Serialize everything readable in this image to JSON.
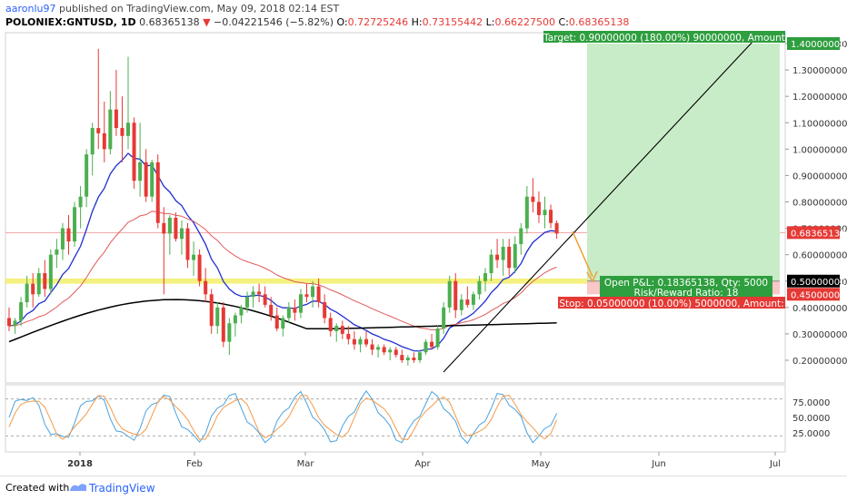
{
  "header": {
    "author": "aaronlu97",
    "published_text": "published on TradingView.com, May 09, 2018 02:14 EST",
    "symbol": "POLONIEX:GNTUSD, 1D",
    "last": "0.68365138",
    "change": "−0.04221546 (−5.82%)",
    "o_label": "O:",
    "o": "0.72725246",
    "h_label": "H:",
    "h": "0.73155442",
    "l_label": "L:",
    "l": "0.66227500",
    "c_label": "C:",
    "c": "0.68365138"
  },
  "footer": {
    "created_with": "Created with",
    "brand": "TradingView"
  },
  "colors": {
    "up": "#4caf50",
    "down": "#e53935",
    "ema_fast": "#1f2fcf",
    "ema_mid": "#e05a5a",
    "ma_long": "#000000",
    "support": "#f2ef6a",
    "target_zone": "#c8ecc8",
    "stop_zone": "#f8c7c7",
    "stoch_k": "#4aa3df",
    "stoch_d": "#f29b4b"
  },
  "chart_data": {
    "type": "candlestick",
    "y_ticks": [
      "1.40000000",
      "1.30000000",
      "1.20000000",
      "1.10000000",
      "1.00000000",
      "0.90000000",
      "0.80000000",
      "0.70000000",
      "0.60000000",
      "0.50000000",
      "0.40000000",
      "0.30000000",
      "0.20000000"
    ],
    "ylim": [
      0.11,
      1.45
    ],
    "x_ticks": [
      "2018",
      "Feb",
      "Mar",
      "Apr",
      "May",
      "Jun",
      "Jul"
    ],
    "price_labels": {
      "last": "0.68365138",
      "level_050": "0.50000000",
      "level_045": "0.45000000",
      "level_140": "1.40000000"
    },
    "support_zone": [
      0.49,
      0.51
    ],
    "horizontal_line": 0.6837,
    "trade": {
      "target_text": "Target: 0.90000000 (180.00%) 90000000, Amount",
      "stop_text": "Stop: 0.05000000 (10.00%) 5000000, Amount:",
      "open_pnl": "Open P&L: 0.18365138, Qty: 5000",
      "risk_reward": "Risk/Reward Ratio: 18",
      "entry": 0.5,
      "stop": 0.45,
      "target": 1.4
    },
    "stochastic": {
      "y_ticks": [
        "75.0000",
        "50.0000",
        "25.0000"
      ],
      "upper": 80,
      "lower": 20
    },
    "candles": [
      [
        0.36,
        0.4,
        0.31,
        0.33
      ],
      [
        0.33,
        0.36,
        0.3,
        0.35
      ],
      [
        0.35,
        0.44,
        0.33,
        0.42
      ],
      [
        0.42,
        0.52,
        0.4,
        0.49
      ],
      [
        0.49,
        0.53,
        0.4,
        0.45
      ],
      [
        0.45,
        0.55,
        0.44,
        0.53
      ],
      [
        0.53,
        0.58,
        0.44,
        0.47
      ],
      [
        0.47,
        0.62,
        0.45,
        0.6
      ],
      [
        0.6,
        0.66,
        0.55,
        0.62
      ],
      [
        0.62,
        0.72,
        0.58,
        0.7
      ],
      [
        0.7,
        0.75,
        0.6,
        0.65
      ],
      [
        0.65,
        0.8,
        0.63,
        0.78
      ],
      [
        0.78,
        0.86,
        0.7,
        0.82
      ],
      [
        0.82,
        1.0,
        0.78,
        0.98
      ],
      [
        0.98,
        1.1,
        0.9,
        1.08
      ],
      [
        1.08,
        1.38,
        1.0,
        1.06
      ],
      [
        1.06,
        1.18,
        0.95,
        1.0
      ],
      [
        1.0,
        1.22,
        0.98,
        1.15
      ],
      [
        1.15,
        1.3,
        1.05,
        1.08
      ],
      [
        1.08,
        1.2,
        0.95,
        1.05
      ],
      [
        1.05,
        1.35,
        1.0,
        1.1
      ],
      [
        1.1,
        1.12,
        0.85,
        0.88
      ],
      [
        0.88,
        1.1,
        0.82,
        0.95
      ],
      [
        0.95,
        1.0,
        0.8,
        0.82
      ],
      [
        0.82,
        0.96,
        0.8,
        0.95
      ],
      [
        0.95,
        0.98,
        0.7,
        0.72
      ],
      [
        0.72,
        0.78,
        0.45,
        0.68
      ],
      [
        0.68,
        0.75,
        0.6,
        0.74
      ],
      [
        0.74,
        0.76,
        0.65,
        0.66
      ],
      [
        0.66,
        0.73,
        0.6,
        0.7
      ],
      [
        0.7,
        0.72,
        0.55,
        0.58
      ],
      [
        0.58,
        0.65,
        0.52,
        0.6
      ],
      [
        0.6,
        0.62,
        0.48,
        0.5
      ],
      [
        0.5,
        0.55,
        0.42,
        0.45
      ],
      [
        0.45,
        0.47,
        0.3,
        0.33
      ],
      [
        0.33,
        0.42,
        0.3,
        0.4
      ],
      [
        0.4,
        0.42,
        0.25,
        0.27
      ],
      [
        0.27,
        0.36,
        0.22,
        0.34
      ],
      [
        0.34,
        0.38,
        0.29,
        0.37
      ],
      [
        0.37,
        0.41,
        0.34,
        0.4
      ],
      [
        0.4,
        0.46,
        0.38,
        0.44
      ],
      [
        0.44,
        0.48,
        0.4,
        0.46
      ],
      [
        0.46,
        0.49,
        0.42,
        0.45
      ],
      [
        0.45,
        0.48,
        0.4,
        0.41
      ],
      [
        0.41,
        0.44,
        0.35,
        0.37
      ],
      [
        0.37,
        0.4,
        0.31,
        0.32
      ],
      [
        0.32,
        0.37,
        0.29,
        0.36
      ],
      [
        0.36,
        0.42,
        0.34,
        0.4
      ],
      [
        0.4,
        0.43,
        0.35,
        0.38
      ],
      [
        0.38,
        0.47,
        0.36,
        0.45
      ],
      [
        0.45,
        0.49,
        0.42,
        0.44
      ],
      [
        0.44,
        0.5,
        0.4,
        0.48
      ],
      [
        0.48,
        0.51,
        0.4,
        0.42
      ],
      [
        0.42,
        0.45,
        0.34,
        0.36
      ],
      [
        0.36,
        0.38,
        0.29,
        0.31
      ],
      [
        0.31,
        0.34,
        0.27,
        0.33
      ],
      [
        0.33,
        0.35,
        0.28,
        0.3
      ],
      [
        0.3,
        0.33,
        0.26,
        0.28
      ],
      [
        0.28,
        0.31,
        0.24,
        0.26
      ],
      [
        0.26,
        0.29,
        0.23,
        0.28
      ],
      [
        0.28,
        0.31,
        0.25,
        0.26
      ],
      [
        0.26,
        0.28,
        0.22,
        0.24
      ],
      [
        0.24,
        0.26,
        0.21,
        0.25
      ],
      [
        0.25,
        0.26,
        0.22,
        0.23
      ],
      [
        0.23,
        0.25,
        0.2,
        0.24
      ],
      [
        0.24,
        0.25,
        0.21,
        0.22
      ],
      [
        0.22,
        0.24,
        0.19,
        0.2
      ],
      [
        0.2,
        0.22,
        0.18,
        0.21
      ],
      [
        0.21,
        0.23,
        0.19,
        0.2
      ],
      [
        0.2,
        0.24,
        0.19,
        0.23
      ],
      [
        0.23,
        0.28,
        0.22,
        0.27
      ],
      [
        0.27,
        0.3,
        0.24,
        0.25
      ],
      [
        0.25,
        0.33,
        0.24,
        0.32
      ],
      [
        0.32,
        0.42,
        0.3,
        0.4
      ],
      [
        0.4,
        0.52,
        0.38,
        0.5
      ],
      [
        0.5,
        0.53,
        0.36,
        0.39
      ],
      [
        0.39,
        0.45,
        0.37,
        0.43
      ],
      [
        0.43,
        0.48,
        0.4,
        0.41
      ],
      [
        0.41,
        0.46,
        0.39,
        0.45
      ],
      [
        0.45,
        0.52,
        0.43,
        0.5
      ],
      [
        0.5,
        0.55,
        0.46,
        0.53
      ],
      [
        0.53,
        0.62,
        0.5,
        0.6
      ],
      [
        0.6,
        0.66,
        0.55,
        0.58
      ],
      [
        0.58,
        0.66,
        0.52,
        0.63
      ],
      [
        0.63,
        0.66,
        0.52,
        0.55
      ],
      [
        0.55,
        0.67,
        0.53,
        0.64
      ],
      [
        0.64,
        0.72,
        0.6,
        0.7
      ],
      [
        0.7,
        0.86,
        0.68,
        0.82
      ],
      [
        0.82,
        0.89,
        0.76,
        0.8
      ],
      [
        0.8,
        0.84,
        0.72,
        0.75
      ],
      [
        0.75,
        0.82,
        0.7,
        0.77
      ],
      [
        0.77,
        0.79,
        0.7,
        0.72
      ],
      [
        0.72,
        0.73,
        0.66,
        0.68
      ]
    ]
  }
}
